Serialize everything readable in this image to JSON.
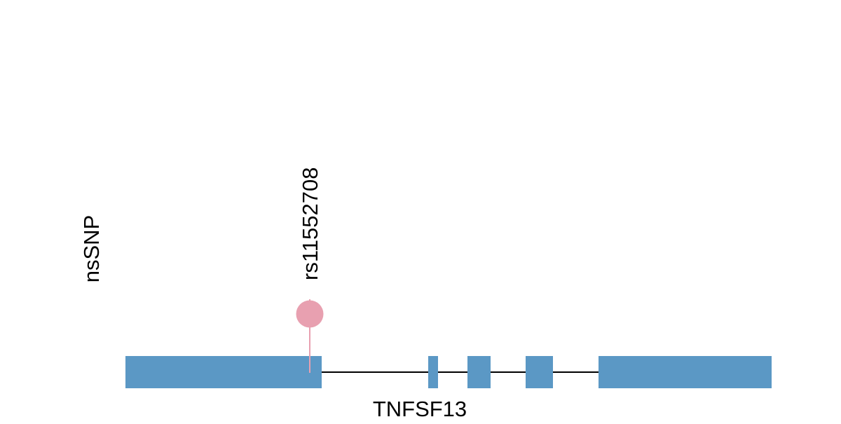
{
  "track_label": "nsSNP",
  "snp": {
    "label": "rs11552708"
  },
  "gene": {
    "name": "TNFSF13"
  }
}
